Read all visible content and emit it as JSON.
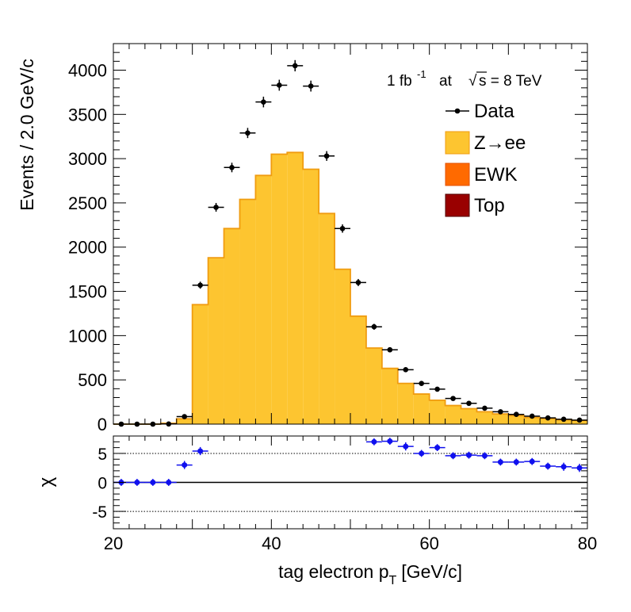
{
  "chart_data": [
    {
      "type": "bar",
      "ylabel": "Events / 2.0 GeV/c",
      "xlim": [
        20,
        80
      ],
      "ylim": [
        0,
        4300
      ],
      "yticks": [
        0,
        500,
        1000,
        1500,
        2000,
        2500,
        3000,
        3500,
        4000
      ],
      "bin_width": 2,
      "annotation": {
        "lumi": "1 fb",
        "lumi_sup": "-1",
        "at": "at",
        "sqrt": "√",
        "energy": "s = 8 TeV"
      },
      "legend": {
        "placement": "top-right",
        "entries": [
          {
            "label": "Data",
            "style": "marker",
            "color": "#000000"
          },
          {
            "label": "Z→ee",
            "style": "fill",
            "color": "#FDC530",
            "edge": "#F09C10"
          },
          {
            "label": "EWK",
            "style": "fill",
            "color": "#FF6A00",
            "edge": "#E25000"
          },
          {
            "label": "Top",
            "style": "fill",
            "color": "#990000",
            "edge": "#500000"
          }
        ]
      },
      "series": [
        {
          "name": "Z→ee",
          "kind": "stacked-histogram",
          "color": "#FDC530",
          "edge": "#F09C10",
          "x_edges": [
            20,
            22,
            24,
            26,
            28,
            30,
            32,
            34,
            36,
            38,
            40,
            42,
            44,
            46,
            48,
            50,
            52,
            54,
            56,
            58,
            60,
            62,
            64,
            66,
            68,
            70,
            72,
            74,
            76,
            78,
            80
          ],
          "values": [
            0,
            0,
            0,
            10,
            60,
            1350,
            1880,
            2210,
            2540,
            2810,
            3050,
            3070,
            2880,
            2380,
            1750,
            1220,
            860,
            630,
            460,
            340,
            270,
            210,
            175,
            140,
            115,
            95,
            75,
            62,
            50,
            42
          ]
        },
        {
          "name": "Data",
          "kind": "points",
          "x": [
            21,
            23,
            25,
            27,
            29,
            31,
            33,
            35,
            37,
            39,
            41,
            43,
            45,
            47,
            49,
            51,
            53,
            55,
            57,
            59,
            61,
            63,
            65,
            67,
            69,
            71,
            73,
            75,
            77,
            79
          ],
          "y": [
            0,
            0,
            0,
            2,
            85,
            1570,
            2450,
            2900,
            3290,
            3640,
            3830,
            4050,
            3820,
            3030,
            2210,
            1600,
            1100,
            840,
            615,
            460,
            395,
            290,
            235,
            180,
            140,
            110,
            90,
            70,
            55,
            45
          ],
          "color": "#000000"
        }
      ]
    },
    {
      "type": "scatter",
      "ylabel": "χ",
      "xlabel": "tag electron p",
      "xlabel_sub": "T",
      "xlabel_unit": "[GeV/c]",
      "xlim": [
        20,
        80
      ],
      "ylim": [
        -8,
        8
      ],
      "yticks": [
        -5,
        0,
        5
      ],
      "xticks": [
        20,
        40,
        60,
        80
      ],
      "reference_lines": [
        -5,
        0,
        5
      ],
      "series": [
        {
          "kind": "points",
          "color": "#1010EE",
          "x": [
            21,
            23,
            25,
            27,
            29,
            31,
            53,
            55,
            57,
            59,
            61,
            63,
            65,
            67,
            69,
            71,
            73,
            75,
            77,
            79
          ],
          "y": [
            0,
            0,
            0,
            0,
            3.0,
            5.4,
            7.0,
            7.1,
            6.2,
            5.0,
            6.0,
            4.6,
            4.7,
            4.6,
            3.5,
            3.5,
            3.6,
            2.8,
            2.7,
            2.5
          ],
          "err": [
            0.6,
            0.6,
            0.6,
            0.6,
            0.7,
            0.7,
            0.6,
            0.6,
            0.7,
            0.6,
            0.6,
            0.6,
            0.6,
            0.6,
            0.6,
            0.6,
            0.6,
            0.6,
            0.7,
            0.7
          ]
        }
      ]
    }
  ]
}
